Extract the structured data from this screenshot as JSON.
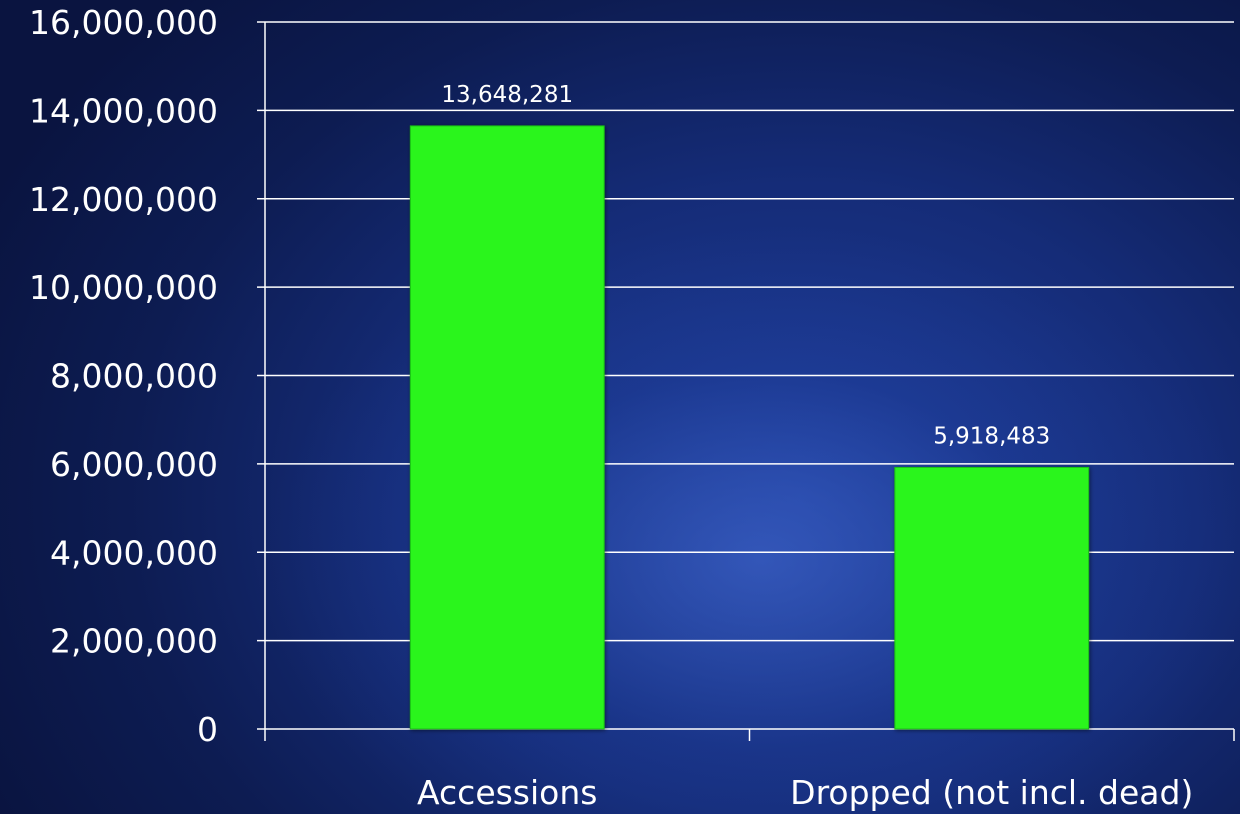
{
  "chart_data": {
    "type": "bar",
    "categories": [
      "Accessions",
      "Dropped (not incl. dead)"
    ],
    "values": [
      13648281,
      5918483
    ],
    "data_labels": [
      "13,648,281",
      "5,918,483"
    ],
    "yticks": [
      "0",
      "2,000,000",
      "4,000,000",
      "6,000,000",
      "8,000,000",
      "10,000,000",
      "12,000,000",
      "14,000,000",
      "16,000,000"
    ],
    "ylim": [
      0,
      16000000
    ],
    "title": "",
    "xlabel": "",
    "ylabel": "",
    "grid": true,
    "legend": "none",
    "bar_color": "#2cf51e"
  }
}
